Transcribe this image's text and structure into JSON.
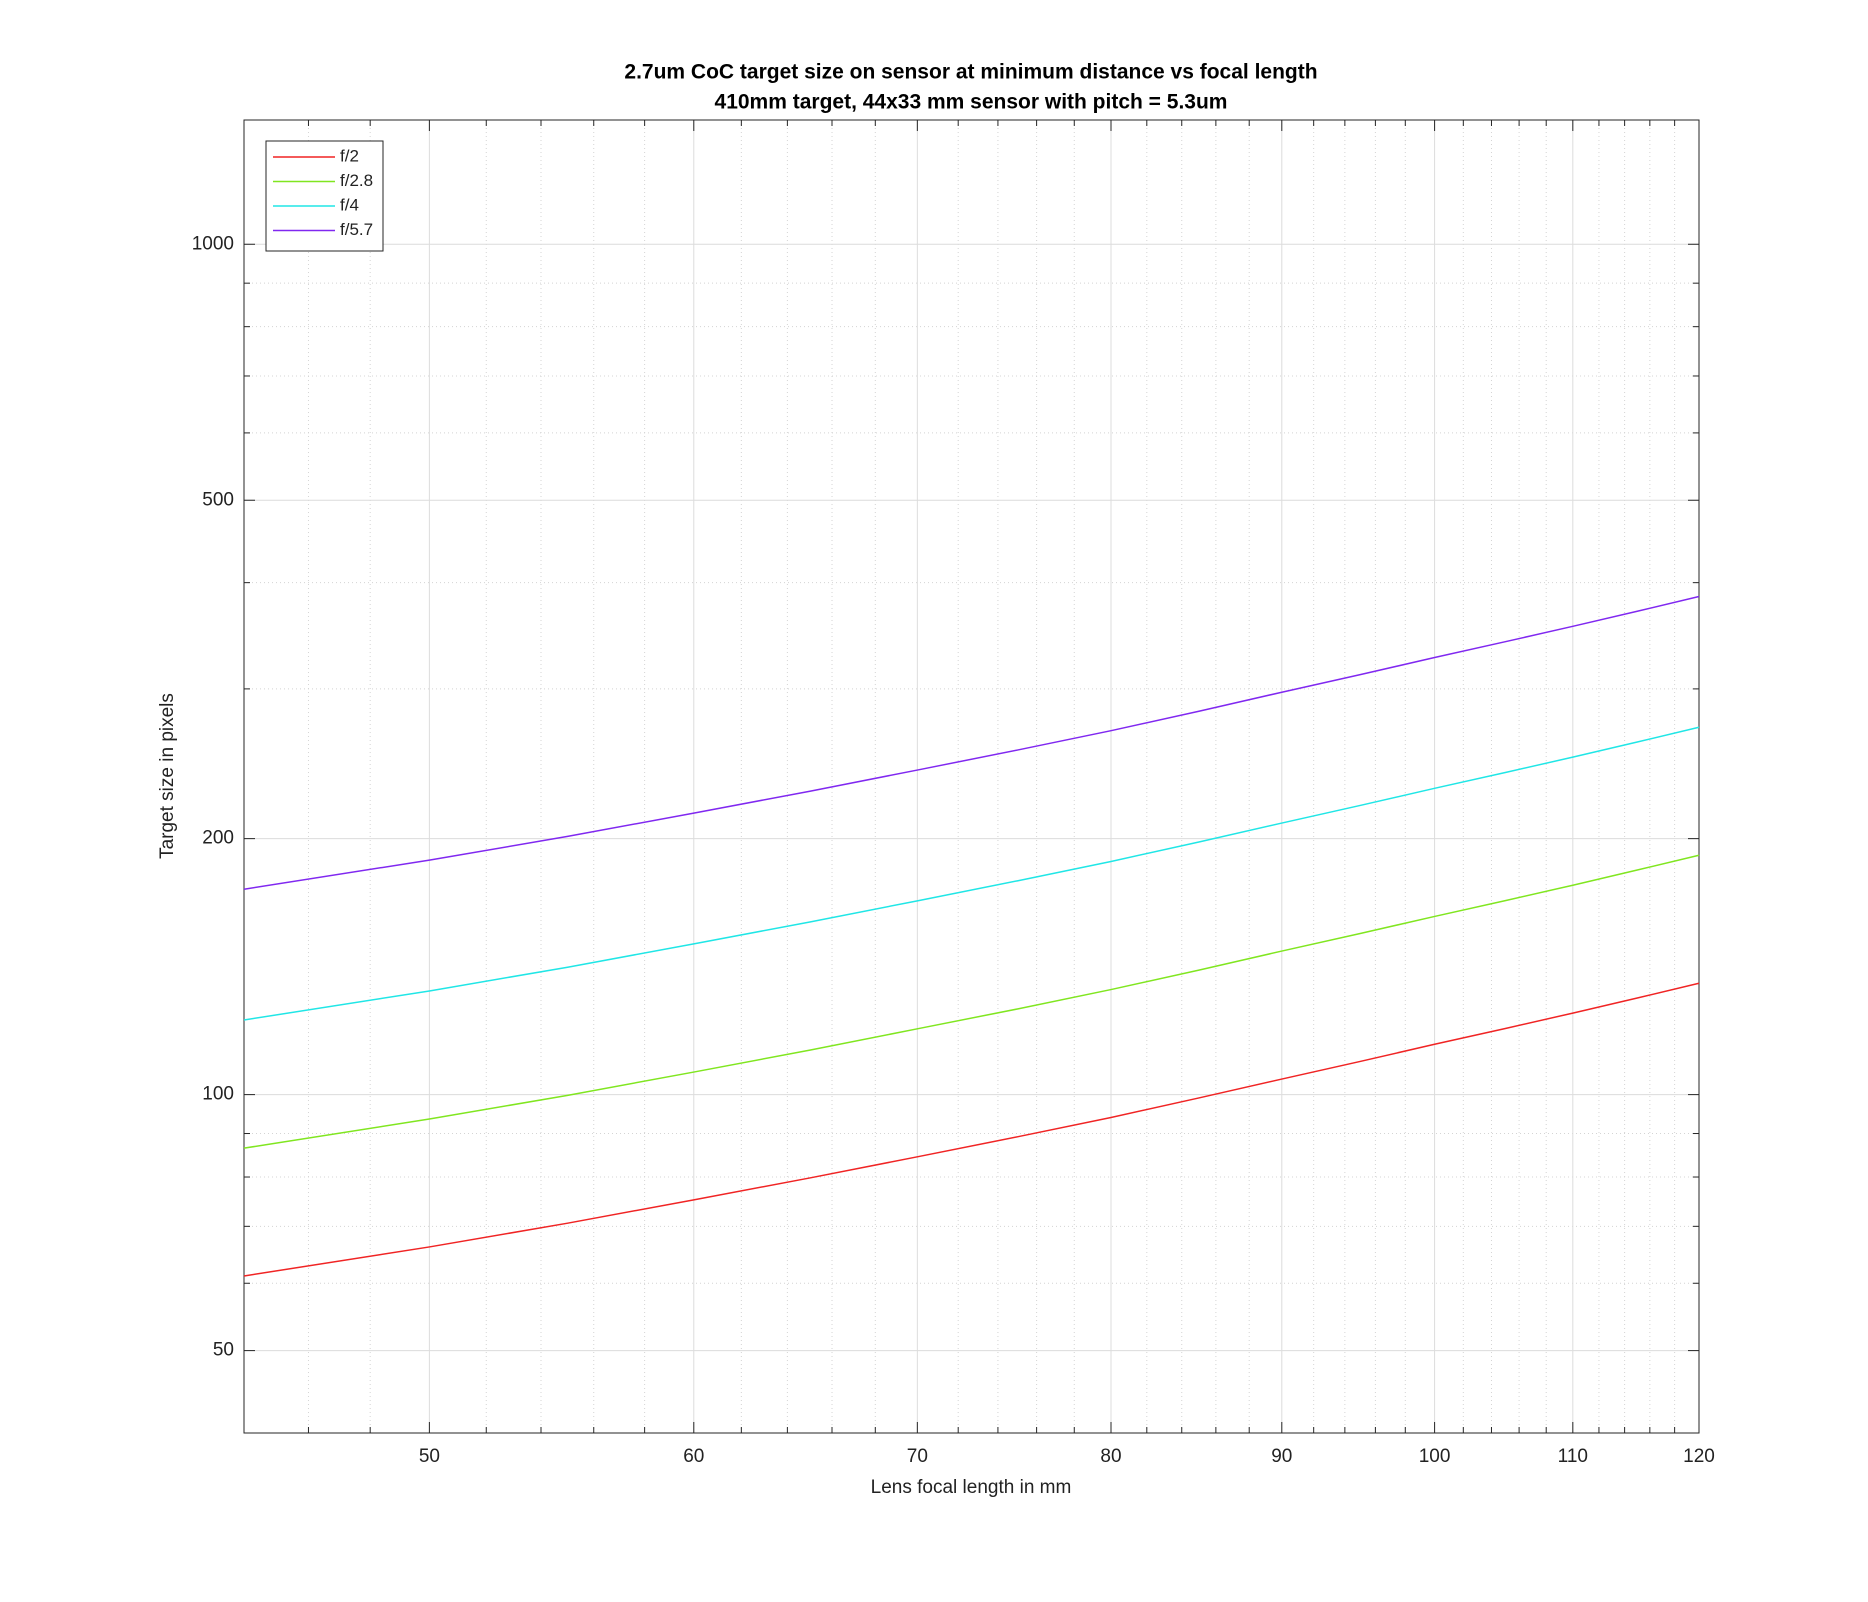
{
  "chart_data": {
    "type": "line",
    "title": "2.7um CoC target size on sensor at minimum distance vs focal length",
    "subtitle": "410mm target, 44x33 mm sensor with pitch = 5.3um",
    "x_label": "Lens focal length in mm",
    "y_label": "Target size in pixels",
    "xscale": "log",
    "yscale": "log",
    "xlim": [
      44,
      120
    ],
    "ylim": [
      40,
      1400
    ],
    "xticks": [
      50,
      60,
      70,
      80,
      90,
      100,
      110,
      120
    ],
    "yticks": [
      50,
      100,
      200,
      500,
      1000
    ],
    "xminorticks": [
      46,
      48,
      52,
      54,
      56,
      58,
      62,
      64,
      66,
      68,
      72,
      74,
      76,
      78,
      82,
      84,
      86,
      88,
      92,
      94,
      96,
      98,
      102,
      104,
      106,
      108,
      112,
      114,
      116,
      118
    ],
    "yminorticks": [
      60,
      70,
      80,
      90,
      300,
      400,
      600,
      700,
      800,
      900
    ],
    "grid": true,
    "minor_grid": true,
    "legend_position": "upper-left",
    "x": [
      44,
      50,
      55,
      60,
      65,
      70,
      75,
      80,
      85,
      90,
      95,
      100,
      105,
      110,
      115,
      120
    ],
    "series": [
      {
        "name": "f/2",
        "color": "#f02424",
        "values": [
          61.2,
          66.2,
          70.6,
          75.2,
          79.8,
          84.5,
          89.2,
          94.0,
          99.1,
          104.3,
          109.4,
          114.6,
          119.6,
          124.7,
          129.9,
          135.2
        ]
      },
      {
        "name": "f/2.8",
        "color": "#80e620",
        "values": [
          86.5,
          93.6,
          99.8,
          106.3,
          112.8,
          119.5,
          126.1,
          132.9,
          140.1,
          147.5,
          154.7,
          162.0,
          169.1,
          176.3,
          183.7,
          191.2
        ]
      },
      {
        "name": "f/4",
        "color": "#20e6e6",
        "values": [
          122.4,
          132.4,
          141.2,
          150.4,
          159.6,
          169.0,
          178.4,
          188.0,
          198.2,
          208.6,
          218.8,
          229.2,
          239.2,
          249.4,
          259.8,
          270.4
        ]
      },
      {
        "name": "f/5.7",
        "color": "#8028f0",
        "values": [
          174.4,
          188.7,
          201.2,
          214.3,
          227.4,
          240.8,
          254.2,
          267.9,
          282.4,
          297.3,
          311.8,
          326.6,
          340.9,
          355.4,
          370.2,
          385.3
        ]
      }
    ]
  }
}
